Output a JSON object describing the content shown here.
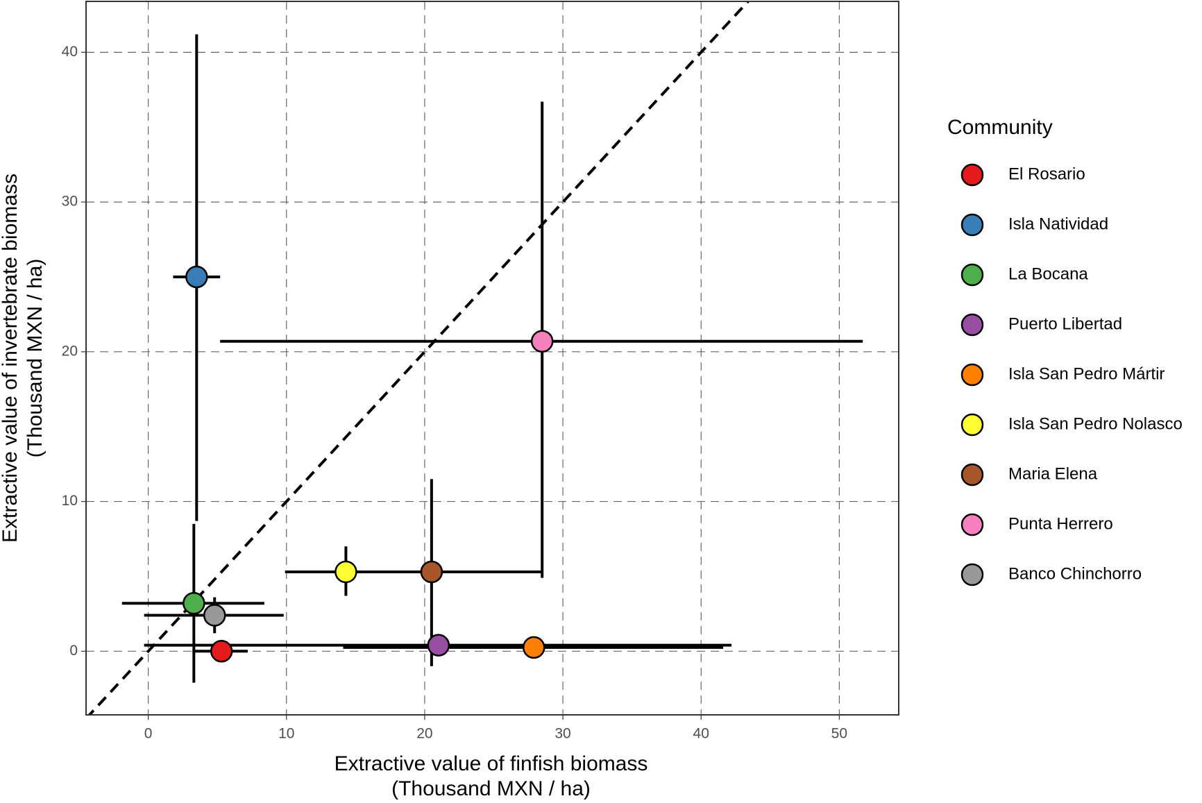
{
  "chart_data": {
    "type": "scatter",
    "xlabel": [
      "Extractive value of finfish biomass",
      "(Thousand MXN / ha)"
    ],
    "ylabel": [
      "Extractive value of invertebrate biomass",
      "(Thousand MXN / ha)"
    ],
    "xlim": [
      -4.5,
      54.3
    ],
    "ylim": [
      -4.25,
      43.4
    ],
    "xticks": [
      0,
      10,
      20,
      30,
      40,
      50
    ],
    "yticks": [
      0,
      10,
      20,
      30,
      40
    ],
    "grid": true,
    "identity_line": true,
    "legend_title": "Community",
    "legend": "right",
    "series": [
      {
        "name": "El Rosario",
        "color": "#e41a1c",
        "x": 5.3,
        "y": 0,
        "x_low": 3.2,
        "x_high": 7.2,
        "y_low": -0.2,
        "y_high": 0.2
      },
      {
        "name": "Isla Natividad",
        "color": "#377eb8",
        "x": 3.5,
        "y": 25,
        "x_low": 1.8,
        "x_high": 5.2,
        "y_low": 8.7,
        "y_high": 41.2
      },
      {
        "name": "La Bocana",
        "color": "#4daf4a",
        "x": 3.3,
        "y": 3.2,
        "x_low": -1.9,
        "x_high": 8.4,
        "y_low": -2.1,
        "y_high": 8.5
      },
      {
        "name": "Puerto Libertad",
        "color": "#984ea3",
        "x": 21,
        "y": 0.4,
        "x_low": -0.3,
        "x_high": 42.2,
        "y_low": 0,
        "y_high": 0.8
      },
      {
        "name": "Isla San Pedro Mártir",
        "color": "#ff7f00",
        "x": 27.9,
        "y": 0.25,
        "x_low": 14.1,
        "x_high": 41.6,
        "y_low": 0.1,
        "y_high": 0.4
      },
      {
        "name": "Isla San Pedro Nolasco",
        "color": "#ffff33",
        "x": 14.3,
        "y": 5.3,
        "x_low": 9.9,
        "x_high": 18.7,
        "y_low": 3.7,
        "y_high": 7.0
      },
      {
        "name": "Maria Elena",
        "color": "#a65628",
        "x": 20.5,
        "y": 5.3,
        "x_low": 14.3,
        "x_high": 28.5,
        "y_low": -1.0,
        "y_high": 11.5
      },
      {
        "name": "Punta Herrero",
        "color": "#f781bf",
        "x": 28.5,
        "y": 20.7,
        "x_low": 5.2,
        "x_high": 51.7,
        "y_low": 4.9,
        "y_high": 36.7
      },
      {
        "name": "Banco Chinchorro",
        "color": "#999999",
        "x": 4.8,
        "y": 2.4,
        "x_low": -0.3,
        "x_high": 9.8,
        "y_low": 1.2,
        "y_high": 3.6
      }
    ]
  }
}
